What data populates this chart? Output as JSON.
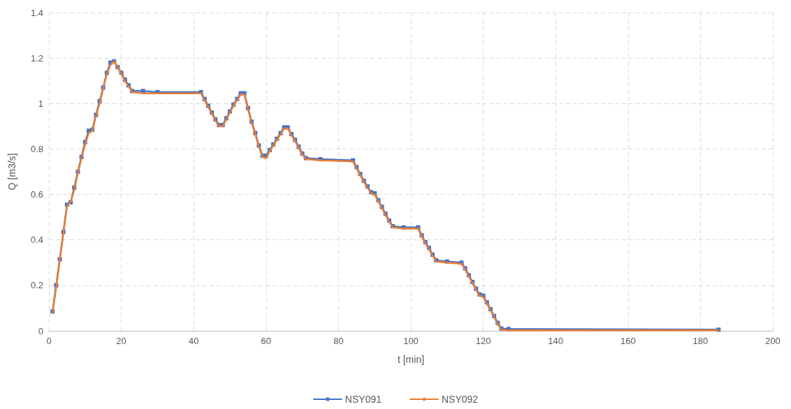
{
  "chart_data": {
    "type": "line",
    "xlabel": "t [min]",
    "ylabel": "Q [m3/s]",
    "xlim": [
      0,
      200
    ],
    "xticks": [
      0,
      20,
      40,
      60,
      80,
      100,
      120,
      140,
      160,
      180,
      200
    ],
    "ylim": [
      0,
      1.4
    ],
    "yticks": [
      0,
      0.2,
      0.4,
      0.6,
      0.8,
      1,
      1.2,
      1.4
    ],
    "grid": true,
    "legend": "bottom",
    "line_style": "solid",
    "x": [
      1,
      2,
      3,
      4,
      5,
      6,
      7,
      8,
      9,
      10,
      11,
      12,
      13,
      14,
      15,
      16,
      17,
      18,
      19,
      20,
      21,
      22,
      23,
      26,
      30,
      42,
      43,
      44,
      45,
      46,
      47,
      48,
      49,
      50,
      51,
      52,
      53,
      54,
      55,
      56,
      57,
      58,
      59,
      60,
      61,
      62,
      63,
      64,
      65,
      66,
      67,
      68,
      69,
      70,
      71,
      75,
      84,
      85,
      86,
      87,
      88,
      89,
      90,
      91,
      92,
      93,
      94,
      95,
      98,
      102,
      103,
      104,
      105,
      106,
      107,
      110,
      114,
      115,
      116,
      117,
      118,
      119,
      120,
      121,
      122,
      123,
      124,
      125,
      127,
      185
    ],
    "series": [
      {
        "name": "NSY091",
        "color": "#4472c4",
        "marker": "square",
        "values": [
          0.085,
          0.2,
          0.315,
          0.435,
          0.555,
          0.565,
          0.63,
          0.7,
          0.765,
          0.83,
          0.88,
          0.885,
          0.95,
          1.01,
          1.07,
          1.135,
          1.18,
          1.185,
          1.16,
          1.135,
          1.105,
          1.08,
          1.055,
          1.055,
          1.05,
          1.05,
          1.02,
          0.99,
          0.96,
          0.93,
          0.905,
          0.905,
          0.935,
          0.965,
          0.995,
          1.02,
          1.045,
          1.045,
          0.98,
          0.92,
          0.87,
          0.815,
          0.77,
          0.77,
          0.795,
          0.82,
          0.845,
          0.87,
          0.895,
          0.895,
          0.865,
          0.84,
          0.81,
          0.78,
          0.76,
          0.755,
          0.75,
          0.72,
          0.69,
          0.66,
          0.635,
          0.61,
          0.605,
          0.575,
          0.545,
          0.515,
          0.485,
          0.46,
          0.455,
          0.455,
          0.42,
          0.39,
          0.365,
          0.335,
          0.31,
          0.305,
          0.3,
          0.275,
          0.245,
          0.215,
          0.185,
          0.16,
          0.155,
          0.125,
          0.095,
          0.065,
          0.035,
          0.01,
          0.008,
          0.005
        ]
      },
      {
        "name": "NSY092",
        "color": "#ed7d31",
        "values": [
          0.08,
          0.19,
          0.31,
          0.43,
          0.55,
          0.565,
          0.62,
          0.695,
          0.76,
          0.82,
          0.87,
          0.88,
          0.945,
          1.0,
          1.065,
          1.13,
          1.17,
          1.185,
          1.16,
          1.13,
          1.1,
          1.075,
          1.05,
          1.045,
          1.045,
          1.045,
          1.015,
          0.985,
          0.955,
          0.925,
          0.9,
          0.9,
          0.93,
          0.96,
          0.99,
          1.015,
          1.04,
          1.04,
          0.975,
          0.915,
          0.865,
          0.81,
          0.765,
          0.76,
          0.79,
          0.815,
          0.84,
          0.865,
          0.89,
          0.89,
          0.86,
          0.835,
          0.805,
          0.775,
          0.755,
          0.75,
          0.745,
          0.715,
          0.685,
          0.655,
          0.63,
          0.605,
          0.6,
          0.57,
          0.54,
          0.51,
          0.48,
          0.455,
          0.45,
          0.45,
          0.415,
          0.385,
          0.36,
          0.33,
          0.305,
          0.3,
          0.295,
          0.27,
          0.24,
          0.21,
          0.18,
          0.155,
          0.15,
          0.12,
          0.09,
          0.06,
          0.03,
          0.005,
          0.002,
          0.002
        ]
      }
    ]
  }
}
